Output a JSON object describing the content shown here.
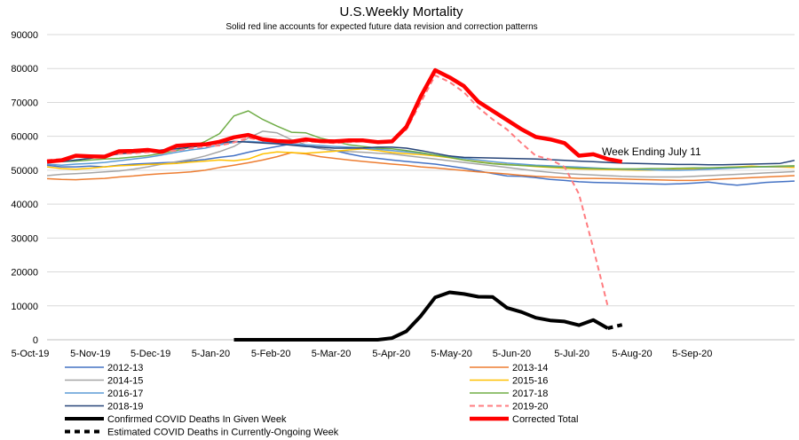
{
  "chart_data": {
    "type": "line",
    "title": "U.S.Weekly Mortality",
    "subtitle": "Solid red line accounts for expected future data revision and correction patterns",
    "xlabel": "",
    "ylabel": "",
    "ylim": [
      0,
      90000
    ],
    "y_ticks": [
      0,
      10000,
      20000,
      30000,
      40000,
      50000,
      60000,
      70000,
      80000,
      90000
    ],
    "x_ticks": [
      "5-Oct-19",
      "5-Nov-19",
      "5-Dec-19",
      "5-Jan-20",
      "5-Feb-20",
      "5-Mar-20",
      "5-Apr-20",
      "5-May-20",
      "5-Jun-20",
      "5-Jul-20",
      "5-Aug-20",
      "5-Sep-20"
    ],
    "x_unit": "weeks from 5-Oct-19",
    "xlim": [
      0,
      52
    ],
    "grid": true,
    "annotation": {
      "text": "Week Ending July 11",
      "x": 38.6,
      "y": 52000
    },
    "series": [
      {
        "name": "2012-13",
        "color": "#4472C4",
        "width": 1.5,
        "dash": "",
        "values": [
          51500,
          51000,
          51000,
          51200,
          51000,
          51500,
          51800,
          52000,
          52200,
          52400,
          52800,
          53200,
          53800,
          54300,
          55300,
          56200,
          57000,
          57800,
          57200,
          56400,
          55800,
          54800,
          54000,
          53500,
          53000,
          52600,
          52200,
          51800,
          51200,
          50600,
          49800,
          49000,
          48300,
          48200,
          47800,
          47300,
          47000,
          46600,
          46400,
          46300,
          46200,
          46100,
          46000,
          45900,
          46000,
          46200,
          46500,
          46000,
          45600,
          46000,
          46400,
          46600,
          46800
        ]
      },
      {
        "name": "2013-14",
        "color": "#ED7D31",
        "width": 1.5,
        "dash": "",
        "values": [
          47500,
          47300,
          47200,
          47400,
          47600,
          48000,
          48300,
          48700,
          49000,
          49200,
          49500,
          50000,
          50800,
          51500,
          52200,
          53000,
          54000,
          55200,
          54800,
          54000,
          53500,
          53000,
          52600,
          52200,
          51800,
          51500,
          51000,
          50700,
          50300,
          49900,
          49500,
          49200,
          48900,
          48500,
          48200,
          48000,
          47800,
          47600,
          47600,
          47500,
          47400,
          47300,
          47200,
          47100,
          47000,
          47000,
          47200,
          47400,
          47600,
          47800,
          48000,
          48200,
          48400
        ]
      },
      {
        "name": "2014-15",
        "color": "#A5A5A5",
        "width": 1.5,
        "dash": "",
        "values": [
          48400,
          48800,
          49000,
          49200,
          49500,
          49800,
          50300,
          51000,
          51800,
          52500,
          53200,
          54200,
          55500,
          57000,
          59500,
          61500,
          61000,
          59000,
          57500,
          56500,
          55800,
          55500,
          55300,
          55000,
          54800,
          54300,
          53800,
          53300,
          52800,
          52300,
          51800,
          51300,
          50800,
          50300,
          49800,
          49400,
          49000,
          48800,
          48600,
          48400,
          48200,
          48100,
          48000,
          48000,
          48000,
          48200,
          48400,
          48600,
          48800,
          49000,
          49200,
          49400,
          49600
        ]
      },
      {
        "name": "2015-16",
        "color": "#FFC000",
        "width": 1.5,
        "dash": "",
        "values": [
          51000,
          50500,
          50300,
          50600,
          51000,
          51300,
          51500,
          51700,
          51800,
          52000,
          52400,
          52700,
          53000,
          52800,
          53300,
          54800,
          55400,
          55200,
          55000,
          55300,
          55600,
          56000,
          56300,
          55800,
          55200,
          54900,
          54600,
          54200,
          53700,
          53000,
          52500,
          52000,
          51700,
          51400,
          51100,
          50800,
          50600,
          50400,
          50300,
          50200,
          50100,
          50000,
          50000,
          50100,
          50200,
          50400,
          50600,
          50800,
          51000,
          51200,
          51000,
          50900,
          50800
        ]
      },
      {
        "name": "2016-17",
        "color": "#5B9BD5",
        "width": 1.5,
        "dash": "",
        "values": [
          51800,
          51500,
          51800,
          52000,
          52300,
          52800,
          53300,
          53800,
          54500,
          55300,
          56000,
          56500,
          57500,
          58200,
          58500,
          58300,
          58000,
          57800,
          57500,
          57300,
          57000,
          56800,
          56500,
          56200,
          55800,
          55400,
          55000,
          54500,
          54000,
          53500,
          53000,
          52500,
          52100,
          51800,
          51500,
          51300,
          51100,
          50900,
          50700,
          50500,
          50300,
          50200,
          50100,
          50000,
          50000,
          50100,
          50300,
          50500,
          50700,
          50900,
          51000,
          51100,
          51200
        ]
      },
      {
        "name": "2017-18",
        "color": "#70AD47",
        "width": 1.5,
        "dash": "",
        "values": [
          52500,
          52500,
          52700,
          53000,
          53300,
          53500,
          53900,
          54300,
          55000,
          55800,
          56800,
          58500,
          60800,
          66000,
          67500,
          65000,
          63000,
          61200,
          61000,
          59500,
          58500,
          57500,
          57000,
          56500,
          56300,
          55800,
          55200,
          54500,
          53800,
          53000,
          52400,
          51900,
          51600,
          51400,
          51200,
          51000,
          50800,
          50600,
          50500,
          50400,
          50400,
          50400,
          50500,
          50500,
          50600,
          50700,
          50700,
          50800,
          50900,
          51000,
          51100,
          51200,
          51300
        ]
      },
      {
        "name": "2018-19",
        "color": "#264478",
        "width": 1.5,
        "dash": "",
        "values": [
          52500,
          52500,
          53000,
          53500,
          54200,
          54800,
          55200,
          55500,
          56000,
          56300,
          56800,
          57300,
          58000,
          58500,
          58300,
          58000,
          57800,
          57400,
          57000,
          56800,
          56500,
          56500,
          56600,
          56800,
          56800,
          56500,
          55800,
          55000,
          54200,
          53800,
          53700,
          53600,
          53500,
          53400,
          53300,
          53100,
          52900,
          52700,
          52500,
          52300,
          52100,
          52000,
          51900,
          51800,
          51700,
          51700,
          51600,
          51600,
          51700,
          51800,
          51900,
          52000,
          52900
        ]
      },
      {
        "name": "2019-20",
        "color": "#FF7C80",
        "width": 2,
        "dash": "6,4",
        "values": [
          53000,
          53300,
          54000,
          54100,
          54200,
          54800,
          55000,
          55300,
          55500,
          55800,
          56500,
          57000,
          57300,
          58200,
          59500,
          58800,
          58400,
          58000,
          58500,
          58300,
          58000,
          58300,
          58500,
          58200,
          58600,
          62000,
          70000,
          78000,
          76000,
          73000,
          68500,
          65000,
          62000,
          58000,
          54300,
          53200,
          51000,
          43000,
          27000,
          10000,
          null,
          null,
          null,
          null,
          null,
          null,
          null,
          null,
          null,
          null,
          null,
          null,
          null
        ]
      },
      {
        "name": "Confirmed COVID Deaths In Given Week",
        "color": "#000000",
        "width": 4,
        "dash": "",
        "values": [
          null,
          null,
          null,
          null,
          null,
          null,
          null,
          null,
          null,
          null,
          null,
          null,
          null,
          0,
          0,
          0,
          0,
          0,
          0,
          0,
          0,
          0,
          0,
          0,
          500,
          2500,
          7000,
          12500,
          14000,
          13500,
          12700,
          12600,
          9400,
          8200,
          6500,
          5700,
          5400,
          4300,
          5800,
          3400,
          null,
          null,
          null,
          null,
          null,
          null,
          null,
          null,
          null,
          null,
          null,
          null,
          null
        ]
      },
      {
        "name": "Estimated COVID Deaths in Currently-Ongoing Week",
        "color": "#000000",
        "width": 4,
        "dash": "6,5",
        "values": [
          null,
          null,
          null,
          null,
          null,
          null,
          null,
          null,
          null,
          null,
          null,
          null,
          null,
          null,
          null,
          null,
          null,
          null,
          null,
          null,
          null,
          null,
          null,
          null,
          null,
          null,
          null,
          null,
          null,
          null,
          null,
          null,
          null,
          null,
          null,
          null,
          null,
          null,
          null,
          3400,
          4400,
          null,
          null,
          null,
          null,
          null,
          null,
          null,
          null,
          null,
          null,
          null,
          null
        ]
      },
      {
        "name": "Corrected Total",
        "color": "#FF0000",
        "width": 4.5,
        "dash": "",
        "values": [
          52500,
          52900,
          54300,
          54100,
          54000,
          55600,
          55700,
          56000,
          55400,
          57200,
          57500,
          57600,
          58400,
          59700,
          60400,
          59100,
          58600,
          58400,
          59100,
          58600,
          58500,
          58800,
          58800,
          58300,
          58500,
          62800,
          71800,
          79500,
          77400,
          74800,
          70200,
          67500,
          64800,
          62100,
          59800,
          59100,
          58000,
          54300,
          54700,
          53300,
          52500,
          null,
          null,
          null,
          null,
          null,
          null,
          null,
          null,
          null,
          null,
          null,
          null
        ]
      }
    ],
    "legend": {
      "placement": "bottom",
      "columns": 2,
      "order": [
        "2012-13",
        "2013-14",
        "2014-15",
        "2015-16",
        "2016-17",
        "2017-18",
        "2018-19",
        "2019-20",
        "Confirmed COVID Deaths In Given Week",
        "Corrected Total",
        "Estimated COVID Deaths in Currently-Ongoing Week"
      ]
    }
  }
}
